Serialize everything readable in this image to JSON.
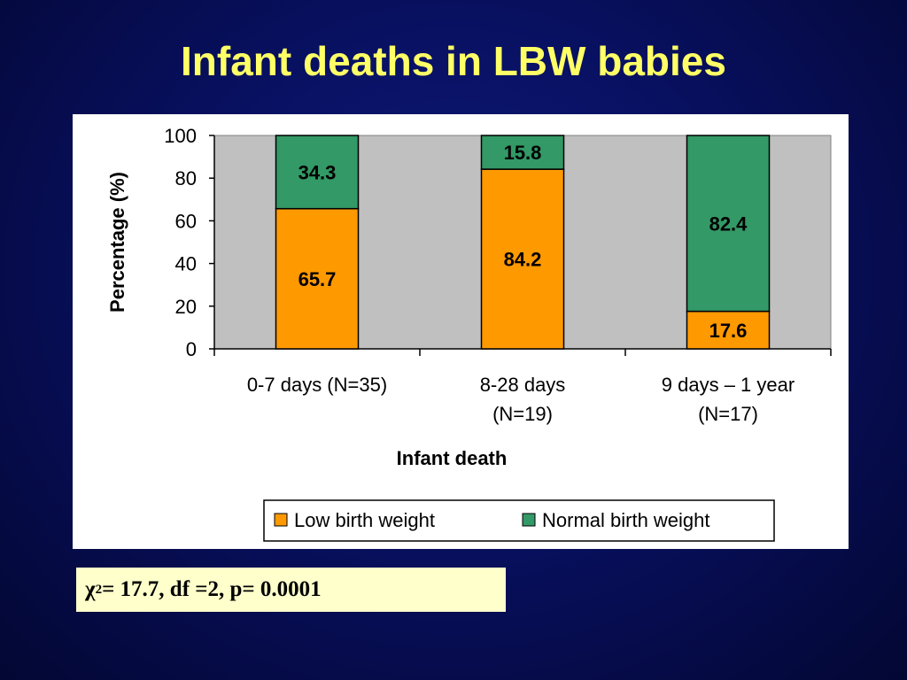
{
  "slide": {
    "title": "Infant deaths in LBW babies"
  },
  "stat": {
    "symbol": "χ",
    "exponent": "2",
    "text": " = 17.7, df =2, p= 0.0001"
  },
  "chart_data": {
    "type": "bar",
    "stacked": true,
    "categories": [
      [
        "0-7 days (N=35)"
      ],
      [
        "8-28 days",
        "(N=19)"
      ],
      [
        "9 days – 1 year",
        "(N=17)"
      ]
    ],
    "series": [
      {
        "name": "Low birth weight",
        "values": [
          65.7,
          84.2,
          17.6
        ]
      },
      {
        "name": "Normal birth weight",
        "values": [
          34.3,
          15.8,
          82.4
        ]
      }
    ],
    "xlabel": "Infant death",
    "ylabel": "Percentage (%)",
    "ylim": [
      0,
      100
    ],
    "yticks": [
      0,
      20,
      40,
      60,
      80,
      100
    ],
    "grid": false,
    "legend": "bottom",
    "colors": {
      "plot_background": "#c0c0c0",
      "series": [
        "#ff9900",
        "#339966"
      ]
    }
  }
}
